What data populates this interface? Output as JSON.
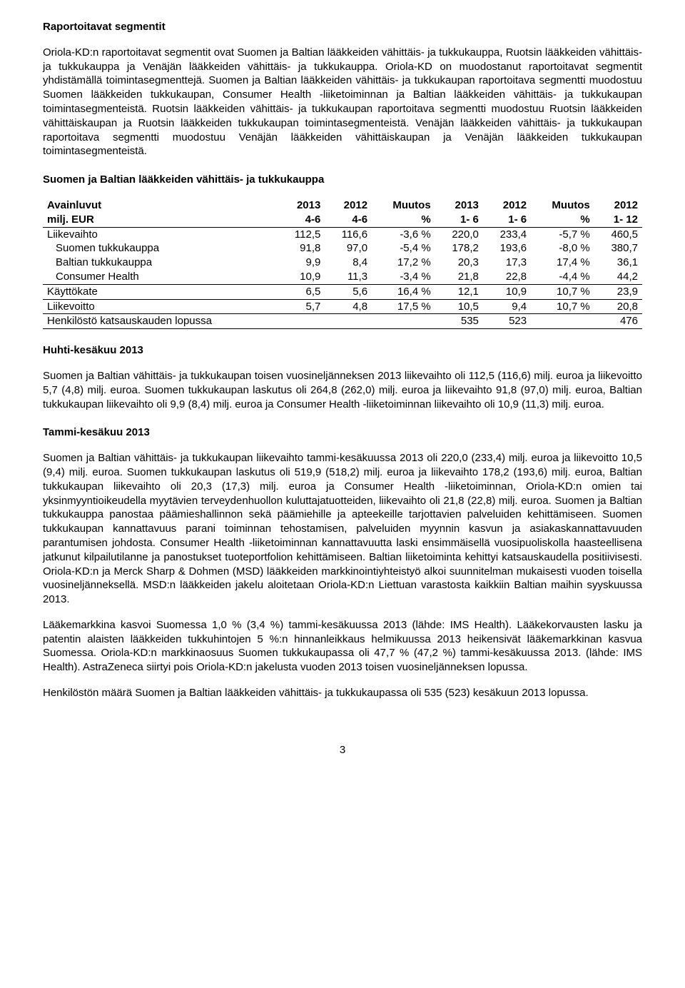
{
  "title": "Raportoitavat segmentit",
  "intro": "Oriola-KD:n raportoitavat segmentit ovat Suomen ja Baltian lääkkeiden vähittäis- ja tukkukauppa, Ruotsin lääkkeiden vähittäis- ja tukkukauppa ja Venäjän lääkkeiden vähittäis- ja tukkukauppa. Oriola-KD on muodostanut raportoitavat segmentit yhdistämällä toimintasegmenttejä. Suomen ja Baltian lääkkeiden vähittäis- ja tukkukaupan raportoitava segmentti muodostuu Suomen lääkkeiden tukkukaupan, Consumer Health -liiketoiminnan ja Baltian lääkkeiden vähittäis- ja tukkukaupan toimintasegmenteistä. Ruotsin lääkkeiden vähittäis- ja tukkukaupan raportoitava segmentti muodostuu Ruotsin lääkkeiden vähittäiskaupan ja Ruotsin lääkkeiden tukkukaupan toimintasegmenteistä. Venäjän lääkkeiden vähittäis- ja tukkukaupan raportoitava segmentti muodostuu Venäjän lääkkeiden vähittäiskaupan ja Venäjän lääkkeiden tukkukaupan toimintasegmenteistä.",
  "section1_heading": "Suomen ja Baltian lääkkeiden vähittäis- ja tukkukauppa",
  "table": {
    "header1": [
      "Avainluvut",
      "2013",
      "2012",
      "Muutos",
      "2013",
      "2012",
      "Muutos",
      "2012"
    ],
    "header2": [
      "milj. EUR",
      "4-6",
      "4-6",
      "%",
      "1- 6",
      "1- 6",
      "%",
      "1- 12"
    ],
    "rows": [
      {
        "label": "Liikevaihto",
        "indent": false,
        "cells": [
          "112,5",
          "116,6",
          "-3,6 %",
          "220,0",
          "233,4",
          "-5,7 %",
          "460,5"
        ],
        "top": true,
        "bottom": false
      },
      {
        "label": "Suomen tukkukauppa",
        "indent": true,
        "cells": [
          "91,8",
          "97,0",
          "-5,4 %",
          "178,2",
          "193,6",
          "-8,0 %",
          "380,7"
        ],
        "top": false,
        "bottom": false
      },
      {
        "label": "Baltian tukkukauppa",
        "indent": true,
        "cells": [
          "9,9",
          "8,4",
          "17,2 %",
          "20,3",
          "17,3",
          "17,4 %",
          "36,1"
        ],
        "top": false,
        "bottom": false
      },
      {
        "label": "Consumer Health",
        "indent": true,
        "cells": [
          "10,9",
          "11,3",
          "-3,4 %",
          "21,8",
          "22,8",
          "-4,4 %",
          "44,2"
        ],
        "top": false,
        "bottom": true
      },
      {
        "label": "Käyttökate",
        "indent": false,
        "cells": [
          "6,5",
          "5,6",
          "16,4 %",
          "12,1",
          "10,9",
          "10,7 %",
          "23,9"
        ],
        "top": false,
        "bottom": true
      },
      {
        "label": "Liikevoitto",
        "indent": false,
        "cells": [
          "5,7",
          "4,8",
          "17,5 %",
          "10,5",
          "9,4",
          "10,7 %",
          "20,8"
        ],
        "top": false,
        "bottom": true
      },
      {
        "label": "Henkilöstö katsauskauden lopussa",
        "indent": false,
        "cells": [
          "",
          "",
          "",
          "535",
          "523",
          "",
          "476"
        ],
        "top": false,
        "bottom": true
      }
    ]
  },
  "section2_heading": "Huhti-kesäkuu 2013",
  "section2_body": "Suomen ja Baltian vähittäis- ja tukkukaupan toisen vuosineljänneksen 2013 liikevaihto oli 112,5 (116,6) milj. euroa ja liikevoitto 5,7 (4,8) milj. euroa. Suomen tukkukaupan laskutus oli 264,8 (262,0) milj. euroa ja liikevaihto 91,8 (97,0) milj. euroa, Baltian tukkukaupan liikevaihto oli 9,9 (8,4) milj. euroa ja Consumer Health -liiketoiminnan liikevaihto oli 10,9 (11,3) milj. euroa.",
  "section3_heading": "Tammi-kesäkuu 2013",
  "section3_body": "Suomen ja Baltian vähittäis- ja tukkukaupan liikevaihto tammi-kesäkuussa 2013 oli 220,0 (233,4) milj. euroa ja liikevoitto 10,5 (9,4) milj. euroa. Suomen tukkukaupan laskutus oli 519,9 (518,2) milj. euroa ja liikevaihto 178,2 (193,6) milj. euroa, Baltian tukkukaupan liikevaihto oli 20,3 (17,3) milj. euroa ja Consumer Health -liiketoiminnan, Oriola-KD:n omien tai yksinmyyntioikeudella myytävien terveydenhuollon kuluttajatuotteiden, liikevaihto oli 21,8 (22,8) milj. euroa. Suomen ja Baltian tukkukauppa panostaa päämieshallinnon sekä päämiehille ja apteekeille tarjottavien palveluiden kehittämiseen. Suomen tukkukaupan kannattavuus parani toiminnan tehostamisen, palveluiden myynnin kasvun ja asiakaskannattavuuden parantumisen johdosta. Consumer Health -liiketoiminnan kannattavuutta laski ensimmäisellä vuosipuoliskolla haasteellisena jatkunut kilpailutilanne ja panostukset tuoteportfolion kehittämiseen. Baltian liiketoiminta kehittyi katsauskaudella positiivisesti. Oriola-KD:n ja Merck Sharp & Dohmen (MSD) lääkkeiden markkinointiyhteistyö alkoi suunnitelman mukaisesti vuoden toisella vuosineljänneksellä. MSD:n lääkkeiden jakelu aloitetaan Oriola-KD:n Liettuan varastosta kaikkiin Baltian maihin syyskuussa 2013.",
  "section3_body2": "Lääkemarkkina kasvoi Suomessa 1,0 % (3,4 %) tammi-kesäkuussa 2013 (lähde: IMS Health). Lääkekorvausten lasku ja patentin alaisten lääkkeiden tukkuhintojen 5 %:n hinnanleikkaus helmikuussa 2013 heikensivät lääkemarkkinan kasvua Suomessa. Oriola-KD:n markkinaosuus Suomen tukkukaupassa oli 47,7 % (47,2 %) tammi-kesäkuussa 2013. (lähde: IMS Health). AstraZeneca siirtyi pois Oriola-KD:n jakelusta vuoden 2013 toisen vuosineljänneksen lopussa.",
  "section3_body3": "Henkilöstön määrä Suomen ja Baltian lääkkeiden vähittäis- ja tukkukaupassa oli 535 (523) kesäkuun 2013 lopussa.",
  "page_number": "3"
}
